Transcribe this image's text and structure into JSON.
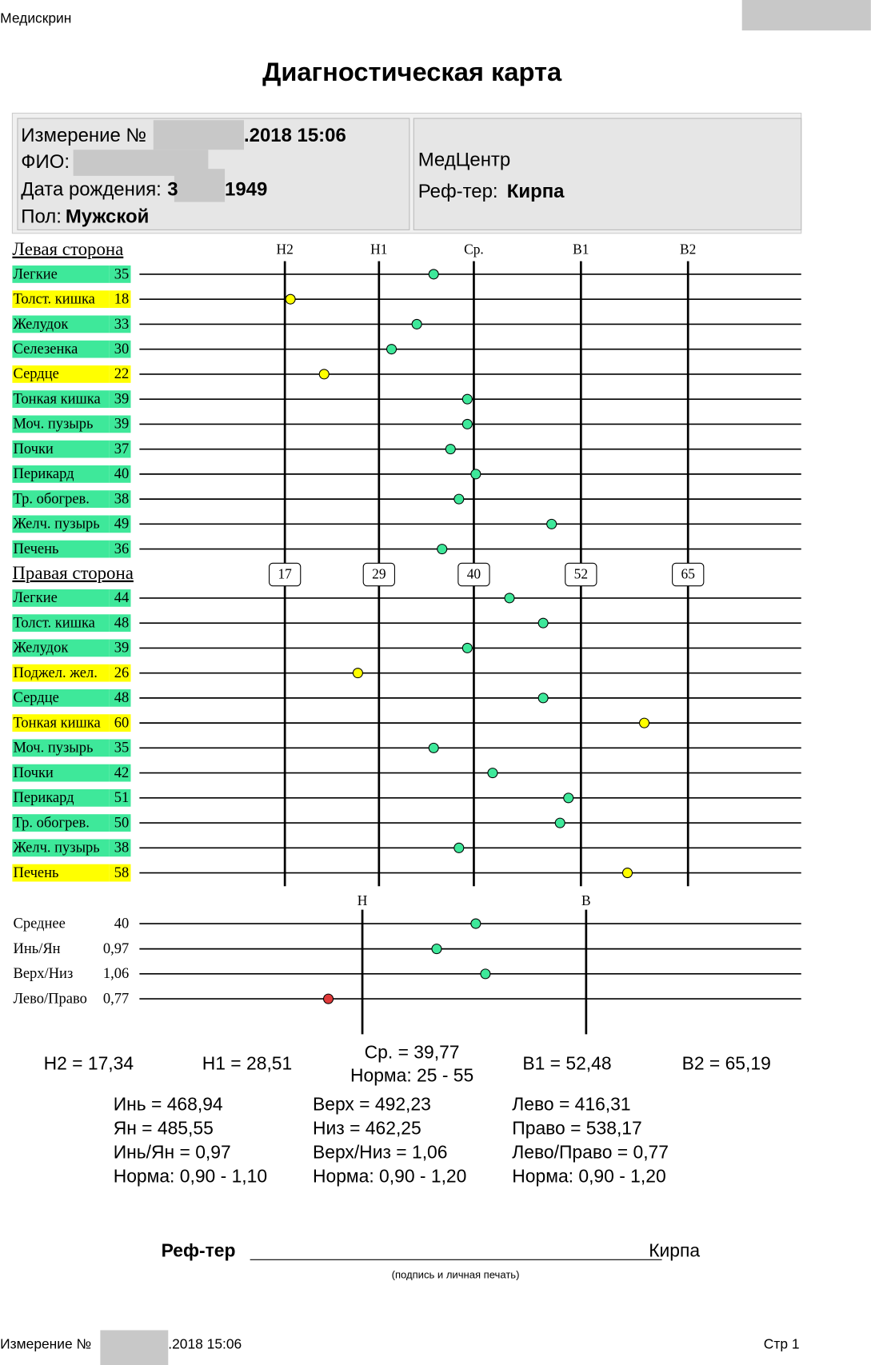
{
  "header": {
    "app": "Медискрин",
    "title": "Диагностическая карта"
  },
  "info": {
    "measurement_prefix": "Измерение №",
    "measurement_suffix": ".2018 15:06",
    "fio": "ФИО:",
    "birth_prefix": "Дата рождения:",
    "birth_a": "3",
    "birth_b": "1949",
    "sex_label": "Пол:",
    "sex": "Мужской",
    "center": "МедЦентр",
    "ref_label": "Реф-тер:",
    "ref": "Кирпа"
  },
  "chart_data": {
    "type": "dot",
    "xlim": [
      17.34,
      65.19
    ],
    "thresholds": [
      {
        "label": "Н2",
        "value": 17.34,
        "box": 17
      },
      {
        "label": "Н1",
        "value": 28.51,
        "box": 29
      },
      {
        "label": "Ср.",
        "value": 39.77,
        "box": 40
      },
      {
        "label": "В1",
        "value": 52.48,
        "box": 52
      },
      {
        "label": "В2",
        "value": 65.19,
        "box": 65
      }
    ],
    "sections": [
      {
        "title": "Левая сторона",
        "items": [
          {
            "name": "Легкие",
            "value": 35,
            "color": "#3ee89a"
          },
          {
            "name": "Толст. кишка",
            "value": 18,
            "color": "#ffff00"
          },
          {
            "name": "Желудок",
            "value": 33,
            "color": "#3ee89a"
          },
          {
            "name": "Селезенка",
            "value": 30,
            "color": "#3ee89a"
          },
          {
            "name": "Сердце",
            "value": 22,
            "color": "#ffff00"
          },
          {
            "name": "Тонкая кишка",
            "value": 39,
            "color": "#3ee89a"
          },
          {
            "name": "Моч. пузырь",
            "value": 39,
            "color": "#3ee89a"
          },
          {
            "name": "Почки",
            "value": 37,
            "color": "#3ee89a"
          },
          {
            "name": "Перикард",
            "value": 40,
            "color": "#3ee89a"
          },
          {
            "name": "Тр. обогрев.",
            "value": 38,
            "color": "#3ee89a"
          },
          {
            "name": "Желч. пузырь",
            "value": 49,
            "color": "#3ee89a"
          },
          {
            "name": "Печень",
            "value": 36,
            "color": "#3ee89a"
          }
        ]
      },
      {
        "title": "Правая сторона",
        "items": [
          {
            "name": "Легкие",
            "value": 44,
            "color": "#3ee89a"
          },
          {
            "name": "Толст. кишка",
            "value": 48,
            "color": "#3ee89a"
          },
          {
            "name": "Желудок",
            "value": 39,
            "color": "#3ee89a"
          },
          {
            "name": "Поджел. жел.",
            "value": 26,
            "color": "#ffff00"
          },
          {
            "name": "Сердце",
            "value": 48,
            "color": "#3ee89a"
          },
          {
            "name": "Тонкая кишка",
            "value": 60,
            "color": "#ffff00"
          },
          {
            "name": "Моч. пузырь",
            "value": 35,
            "color": "#3ee89a"
          },
          {
            "name": "Почки",
            "value": 42,
            "color": "#3ee89a"
          },
          {
            "name": "Перикард",
            "value": 51,
            "color": "#3ee89a"
          },
          {
            "name": "Тр. обогрев.",
            "value": 50,
            "color": "#3ee89a"
          },
          {
            "name": "Желч. пузырь",
            "value": 38,
            "color": "#3ee89a"
          },
          {
            "name": "Печень",
            "value": 58,
            "color": "#ffff00"
          }
        ]
      }
    ],
    "summary_axis": {
      "low": "Н",
      "high": "В"
    },
    "mean": {
      "name": "Среднее",
      "value": 40,
      "color": "#3ee89a"
    },
    "ratios": [
      {
        "name": "Инь/Ян",
        "value": 0.97,
        "value_label": "0,97",
        "color": "#3ee89a"
      },
      {
        "name": "Верх/Низ",
        "value": 1.06,
        "value_label": "1,06",
        "color": "#3ee89a"
      },
      {
        "name": "Лево/Право",
        "value": 0.77,
        "value_label": "0,77",
        "color": "#e03a3a"
      }
    ]
  },
  "summary": {
    "h2": "Н2 = 17,34",
    "h1": "Н1 = 28,51",
    "avg": "Ср. = 39,77",
    "avg_norm": "Норма: 25 - 55",
    "b1": "В1 = 52,48",
    "b2": "В2 = 65,19",
    "cols": [
      [
        "Инь = 468,94",
        "Ян = 485,55",
        "Инь/Ян = 0,97",
        "Норма: 0,90 - 1,10"
      ],
      [
        "Верх = 492,23",
        "Низ = 462,25",
        "Верх/Низ = 1,06",
        "Норма: 0,90 - 1,20"
      ],
      [
        "Лево = 416,31",
        "Право = 538,17",
        "Лево/Право = 0,77",
        "Норма: 0,90 - 1,20"
      ]
    ]
  },
  "signature": {
    "label": "Реф-тер",
    "name": "Кирпа",
    "note": "(подпись и личная печать)"
  },
  "footer": {
    "prefix": "Измерение №",
    "suffix": ".2018 15:06",
    "page": "Стр 1"
  }
}
